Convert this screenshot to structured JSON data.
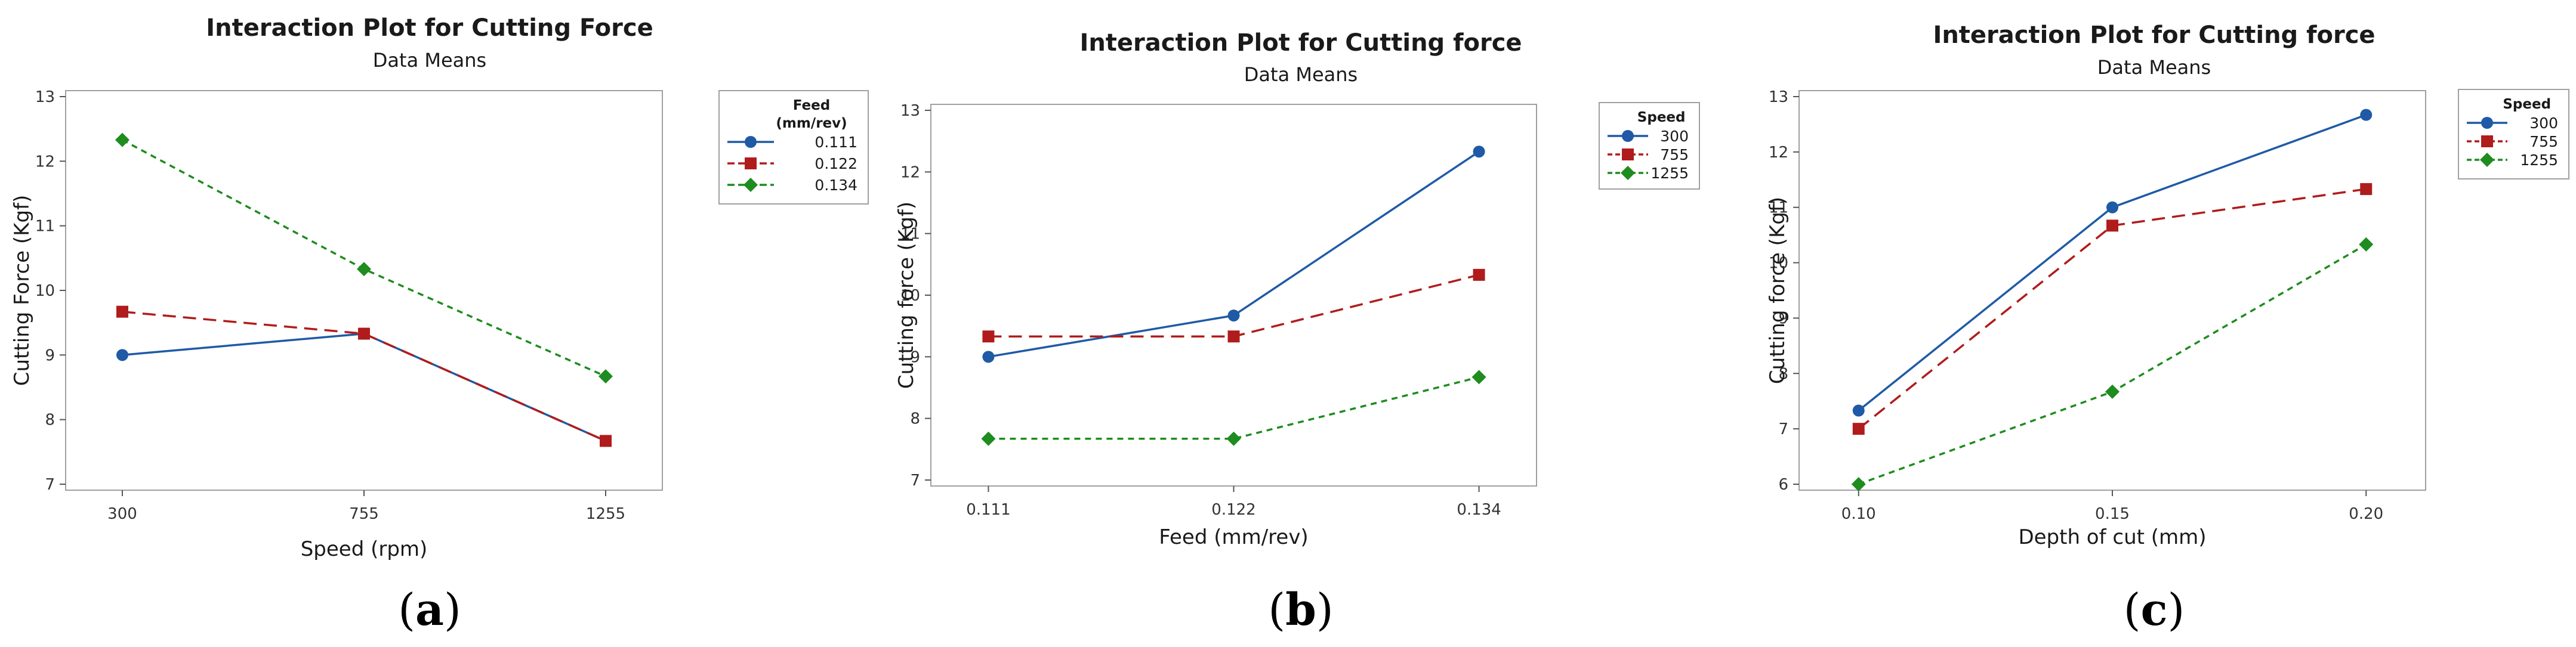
{
  "chart_data": [
    {
      "type": "line",
      "panel": "(a)",
      "panel_letter": "a",
      "title": "Interaction Plot for Cutting Force",
      "subtitle": "Data Means",
      "xlabel": "Speed (rpm)",
      "ylabel": "Cutting Force (Kgf)",
      "categories": [
        "300",
        "755",
        "1255"
      ],
      "ylim": [
        7,
        13
      ],
      "yticks": [
        7,
        8,
        9,
        10,
        11,
        12,
        13
      ],
      "legend_title": [
        "Feed",
        "(mm/rev)"
      ],
      "legend_position": "right",
      "series": [
        {
          "name": "0.111",
          "color": "#1f5aa6",
          "marker": "circle",
          "dash": "solid",
          "values": [
            9.0,
            9.33,
            7.67
          ]
        },
        {
          "name": "0.122",
          "color": "#b01c1c",
          "marker": "square",
          "dash": "dashed",
          "values": [
            9.67,
            9.33,
            7.67
          ]
        },
        {
          "name": "0.134",
          "color": "#1e8c1e",
          "marker": "diamond",
          "dash": "dotted",
          "values": [
            12.33,
            10.33,
            8.67
          ]
        }
      ]
    },
    {
      "type": "line",
      "panel": "(b)",
      "panel_letter": "b",
      "title": "Interaction Plot for Cutting force",
      "subtitle": "Data Means",
      "xlabel": "Feed (mm/rev)",
      "ylabel": "Cutting force (Kgf)",
      "categories": [
        "0.111",
        "0.122",
        "0.134"
      ],
      "ylim": [
        7,
        13
      ],
      "yticks": [
        7,
        8,
        9,
        10,
        11,
        12,
        13
      ],
      "legend_title": [
        "Speed"
      ],
      "legend_position": "right",
      "series": [
        {
          "name": "300",
          "color": "#1f5aa6",
          "marker": "circle",
          "dash": "solid",
          "values": [
            9.0,
            9.67,
            12.33
          ]
        },
        {
          "name": "755",
          "color": "#b01c1c",
          "marker": "square",
          "dash": "dashed",
          "values": [
            9.33,
            9.33,
            10.33
          ]
        },
        {
          "name": "1255",
          "color": "#1e8c1e",
          "marker": "diamond",
          "dash": "dotted",
          "values": [
            7.67,
            7.67,
            8.67
          ]
        }
      ]
    },
    {
      "type": "line",
      "panel": "(c)",
      "panel_letter": "c",
      "title": "Interaction Plot for Cutting force",
      "subtitle": "Data Means",
      "xlabel": "Depth of cut (mm)",
      "ylabel": "Cutting force (Kgf)",
      "categories": [
        "0.10",
        "0.15",
        "0.20"
      ],
      "ylim": [
        6,
        13
      ],
      "yticks": [
        6,
        7,
        8,
        9,
        10,
        11,
        12,
        13
      ],
      "legend_title": [
        "Speed"
      ],
      "legend_position": "right",
      "series": [
        {
          "name": "300",
          "color": "#1f5aa6",
          "marker": "circle",
          "dash": "solid",
          "values": [
            7.33,
            11.0,
            12.67
          ]
        },
        {
          "name": "755",
          "color": "#b01c1c",
          "marker": "square",
          "dash": "dashed",
          "values": [
            7.0,
            10.67,
            11.33
          ]
        },
        {
          "name": "1255",
          "color": "#1e8c1e",
          "marker": "diamond",
          "dash": "dotted",
          "values": [
            6.0,
            7.67,
            10.33
          ]
        }
      ]
    }
  ]
}
